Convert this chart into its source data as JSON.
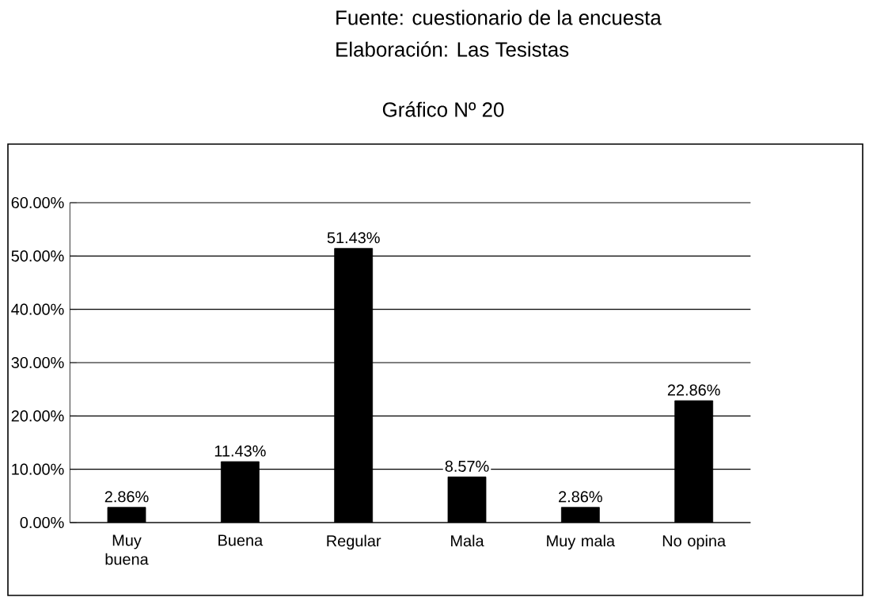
{
  "chart_data": {
    "type": "bar",
    "title": "Gráfico Nº 20",
    "annotations": [
      "Fuente: cuestionario de la encuesta",
      "Elaboración: Las Tesistas"
    ],
    "categories": [
      "Muy buena",
      "Buena",
      "Regular",
      "Mala",
      "Muy mala",
      "No opina"
    ],
    "values": [
      2.86,
      11.43,
      51.43,
      8.57,
      2.86,
      22.86
    ],
    "value_labels": [
      "2.86%",
      "11.43%",
      "51.43%",
      "8.57%",
      "2.86%",
      "22.86%"
    ],
    "color": "#000000",
    "ylim": [
      0,
      60
    ],
    "yticks": [
      {
        "value": 0,
        "label": "0.00%"
      },
      {
        "value": 10,
        "label": "10.00%"
      },
      {
        "value": 20,
        "label": "20.00%"
      },
      {
        "value": 30,
        "label": "30.00%"
      },
      {
        "value": 40,
        "label": "40.00%"
      },
      {
        "value": 50,
        "label": "50.00%"
      },
      {
        "value": 60,
        "label": "60.00%"
      }
    ],
    "grid": "y"
  }
}
